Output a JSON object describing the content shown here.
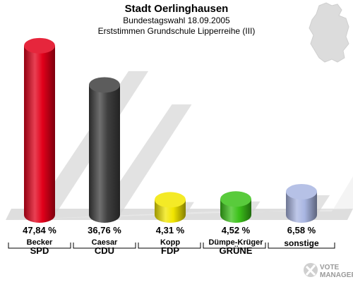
{
  "header": {
    "title": "Stadt Oerlinghausen",
    "subtitle": "Bundestagswahl 18.09.2005",
    "subtitle2": "Erststimmen Grundschule Lipperreihe (III)"
  },
  "logo": {
    "line1": "VOTE",
    "line2": "MANAGER"
  },
  "chart_data": {
    "type": "bar",
    "title": "Stadt Oerlinghausen",
    "subtitle": "Bundestagswahl 18.09.2005 – Erststimmen Grundschule Lipperreihe (III)",
    "ylim": [
      0,
      50
    ],
    "grid": false,
    "categories": [
      "SPD",
      "CDU",
      "FDP",
      "GRÜNE",
      "sonstige"
    ],
    "candidates": [
      "Becker",
      "Caesar",
      "Kopp",
      "Dümpe-Krüger",
      ""
    ],
    "values": [
      47.84,
      36.76,
      4.31,
      4.52,
      6.58
    ],
    "value_labels": [
      "47,84 %",
      "36,76 %",
      "4,31 %",
      "4,52 %",
      "6,58 %"
    ],
    "colors": [
      "#e2001a",
      "#3f3f3f",
      "#f2e600",
      "#3cc21a",
      "#a9b6e2"
    ]
  }
}
